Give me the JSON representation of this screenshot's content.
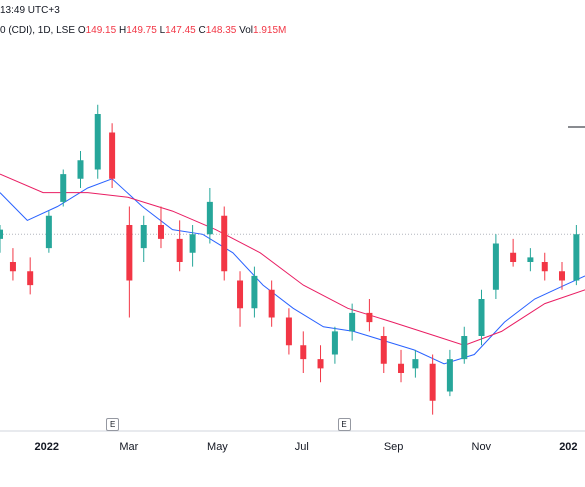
{
  "header": {
    "time": "13:49 UTC+3",
    "symbol_fragment": "0 (CDI), 1D, LSE",
    "o_label": "O",
    "o_value": "149.15",
    "h_label": "H",
    "h_value": "149.75",
    "l_label": "L",
    "l_value": "147.45",
    "c_label": "C",
    "c_value": "148.35",
    "vol_label": "Vol",
    "vol_value": "1.915M"
  },
  "colors": {
    "up": "#26a69a",
    "down": "#f23645",
    "ma_fast": "#2962ff",
    "ma_slow": "#e91e63",
    "axis": "#d1d4dc",
    "dotted": "#b2b5be"
  },
  "events": [
    {
      "label": "E",
      "date": "2022-02-17"
    },
    {
      "label": "E",
      "date": "2022-07-28"
    }
  ],
  "chart_data": {
    "type": "candlestick",
    "title": "",
    "xlabel": "",
    "ylabel": "",
    "x_tick_labels": [
      "2022",
      "Mar",
      "May",
      "Jul",
      "Sep",
      "Nov",
      "202"
    ],
    "x_range": [
      "2021-12-01",
      "2023-01-12"
    ],
    "y_range": [
      120,
      200
    ],
    "candles": [
      {
        "date": "2021-12-01",
        "o": 157,
        "h": 160,
        "l": 154,
        "c": 159
      },
      {
        "date": "2021-12-10",
        "o": 152,
        "h": 155,
        "l": 148,
        "c": 150
      },
      {
        "date": "2021-12-22",
        "o": 150,
        "h": 153,
        "l": 145,
        "c": 147
      },
      {
        "date": "2022-01-04",
        "o": 155,
        "h": 163,
        "l": 154,
        "c": 162
      },
      {
        "date": "2022-01-14",
        "o": 165,
        "h": 172,
        "l": 164,
        "c": 171
      },
      {
        "date": "2022-01-26",
        "o": 170,
        "h": 176,
        "l": 168,
        "c": 174
      },
      {
        "date": "2022-02-07",
        "o": 172,
        "h": 186,
        "l": 170,
        "c": 184
      },
      {
        "date": "2022-02-17",
        "o": 180,
        "h": 182,
        "l": 168,
        "c": 170
      },
      {
        "date": "2022-03-01",
        "o": 160,
        "h": 164,
        "l": 140,
        "c": 148
      },
      {
        "date": "2022-03-11",
        "o": 155,
        "h": 162,
        "l": 152,
        "c": 160
      },
      {
        "date": "2022-03-23",
        "o": 160,
        "h": 164,
        "l": 155,
        "c": 157
      },
      {
        "date": "2022-04-05",
        "o": 157,
        "h": 161,
        "l": 150,
        "c": 152
      },
      {
        "date": "2022-04-14",
        "o": 154,
        "h": 160,
        "l": 151,
        "c": 158
      },
      {
        "date": "2022-04-26",
        "o": 158,
        "h": 168,
        "l": 156,
        "c": 165
      },
      {
        "date": "2022-05-06",
        "o": 162,
        "h": 164,
        "l": 148,
        "c": 150
      },
      {
        "date": "2022-05-17",
        "o": 148,
        "h": 150,
        "l": 138,
        "c": 142
      },
      {
        "date": "2022-05-27",
        "o": 142,
        "h": 151,
        "l": 140,
        "c": 149
      },
      {
        "date": "2022-06-08",
        "o": 146,
        "h": 148,
        "l": 138,
        "c": 140
      },
      {
        "date": "2022-06-20",
        "o": 140,
        "h": 142,
        "l": 132,
        "c": 134
      },
      {
        "date": "2022-06-30",
        "o": 134,
        "h": 137,
        "l": 128,
        "c": 131
      },
      {
        "date": "2022-07-12",
        "o": 131,
        "h": 134,
        "l": 126,
        "c": 129
      },
      {
        "date": "2022-07-22",
        "o": 132,
        "h": 138,
        "l": 130,
        "c": 137
      },
      {
        "date": "2022-08-03",
        "o": 137,
        "h": 143,
        "l": 135,
        "c": 141
      },
      {
        "date": "2022-08-15",
        "o": 141,
        "h": 144,
        "l": 137,
        "c": 139
      },
      {
        "date": "2022-08-25",
        "o": 136,
        "h": 138,
        "l": 128,
        "c": 130
      },
      {
        "date": "2022-09-06",
        "o": 130,
        "h": 133,
        "l": 126,
        "c": 128
      },
      {
        "date": "2022-09-16",
        "o": 129,
        "h": 133,
        "l": 127,
        "c": 131
      },
      {
        "date": "2022-09-28",
        "o": 130,
        "h": 132,
        "l": 119,
        "c": 122
      },
      {
        "date": "2022-10-10",
        "o": 124,
        "h": 133,
        "l": 123,
        "c": 131
      },
      {
        "date": "2022-10-20",
        "o": 131,
        "h": 138,
        "l": 130,
        "c": 136
      },
      {
        "date": "2022-11-01",
        "o": 136,
        "h": 146,
        "l": 134,
        "c": 144
      },
      {
        "date": "2022-11-11",
        "o": 146,
        "h": 158,
        "l": 144,
        "c": 156
      },
      {
        "date": "2022-11-23",
        "o": 154,
        "h": 157,
        "l": 151,
        "c": 152
      },
      {
        "date": "2022-12-05",
        "o": 152,
        "h": 155,
        "l": 150,
        "c": 153
      },
      {
        "date": "2022-12-15",
        "o": 152,
        "h": 154,
        "l": 148,
        "c": 150
      },
      {
        "date": "2022-12-27",
        "o": 150,
        "h": 152,
        "l": 146,
        "c": 148
      },
      {
        "date": "2023-01-06",
        "o": 148,
        "h": 160,
        "l": 147,
        "c": 158
      }
    ],
    "series": [
      {
        "values": [
          {
            "date": "2021-12-01",
            "v": 167
          },
          {
            "date": "2021-12-20",
            "v": 161
          },
          {
            "date": "2022-01-10",
            "v": 164
          },
          {
            "date": "2022-01-31",
            "v": 168
          },
          {
            "date": "2022-02-17",
            "v": 170
          },
          {
            "date": "2022-03-10",
            "v": 164
          },
          {
            "date": "2022-03-31",
            "v": 159
          },
          {
            "date": "2022-04-21",
            "v": 158
          },
          {
            "date": "2022-05-12",
            "v": 154
          },
          {
            "date": "2022-06-02",
            "v": 147
          },
          {
            "date": "2022-06-23",
            "v": 142
          },
          {
            "date": "2022-07-14",
            "v": 138
          },
          {
            "date": "2022-08-04",
            "v": 137
          },
          {
            "date": "2022-08-25",
            "v": 135
          },
          {
            "date": "2022-09-15",
            "v": 133
          },
          {
            "date": "2022-10-06",
            "v": 130
          },
          {
            "date": "2022-10-27",
            "v": 132
          },
          {
            "date": "2022-11-17",
            "v": 139
          },
          {
            "date": "2022-12-08",
            "v": 144
          },
          {
            "date": "2022-12-29",
            "v": 147
          },
          {
            "date": "2023-01-12",
            "v": 149
          }
        ]
      },
      {
        "values": [
          {
            "date": "2021-12-01",
            "v": 171
          },
          {
            "date": "2021-12-31",
            "v": 167
          },
          {
            "date": "2022-01-31",
            "v": 167
          },
          {
            "date": "2022-02-28",
            "v": 166
          },
          {
            "date": "2022-03-31",
            "v": 163
          },
          {
            "date": "2022-04-30",
            "v": 159
          },
          {
            "date": "2022-05-31",
            "v": 154
          },
          {
            "date": "2022-06-30",
            "v": 147
          },
          {
            "date": "2022-07-31",
            "v": 142
          },
          {
            "date": "2022-08-31",
            "v": 139
          },
          {
            "date": "2022-09-30",
            "v": 136
          },
          {
            "date": "2022-10-20",
            "v": 134
          },
          {
            "date": "2022-11-15",
            "v": 137
          },
          {
            "date": "2022-12-15",
            "v": 143
          },
          {
            "date": "2023-01-12",
            "v": 146
          }
        ]
      }
    ],
    "horizontal_lines": [
      {
        "value": 158,
        "style": "dotted"
      }
    ]
  }
}
